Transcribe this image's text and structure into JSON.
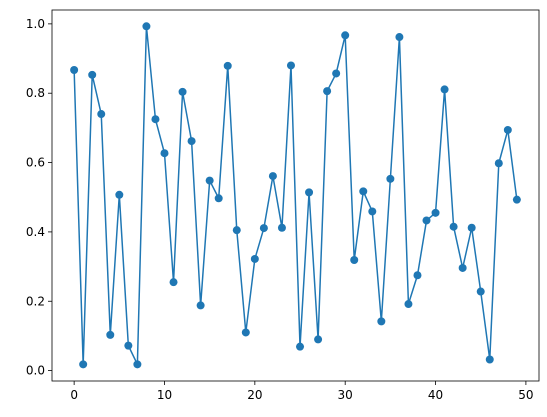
{
  "chart_data": {
    "type": "line",
    "title": "",
    "xlabel": "",
    "ylabel": "",
    "xlim": [
      -2.45,
      51.45
    ],
    "ylim": [
      -0.03,
      1.04
    ],
    "xticks": [
      0,
      10,
      20,
      30,
      40,
      50
    ],
    "yticks": [
      0.0,
      0.2,
      0.4,
      0.6,
      0.8,
      1.0
    ],
    "xtick_labels": [
      "0",
      "10",
      "20",
      "30",
      "40",
      "50"
    ],
    "ytick_labels": [
      "0.0",
      "0.2",
      "0.4",
      "0.6",
      "0.8",
      "1.0"
    ],
    "grid": false,
    "legend": false,
    "marker": "circle",
    "color": "#1f77b4",
    "x": [
      0,
      1,
      2,
      3,
      4,
      5,
      6,
      7,
      8,
      9,
      10,
      11,
      12,
      13,
      14,
      15,
      16,
      17,
      18,
      19,
      20,
      21,
      22,
      23,
      24,
      25,
      26,
      27,
      28,
      29,
      30,
      31,
      32,
      33,
      34,
      35,
      36,
      37,
      38,
      39,
      40,
      41,
      42,
      43,
      44,
      45,
      46,
      47,
      48,
      49
    ],
    "y": [
      0.867,
      0.018,
      0.853,
      0.74,
      0.103,
      0.507,
      0.072,
      0.018,
      0.993,
      0.725,
      0.627,
      0.255,
      0.804,
      0.662,
      0.188,
      0.548,
      0.497,
      0.879,
      0.405,
      0.11,
      0.322,
      0.411,
      0.561,
      0.412,
      0.88,
      0.069,
      0.514,
      0.09,
      0.806,
      0.857,
      0.967,
      0.319,
      0.517,
      0.459,
      0.142,
      0.553,
      0.962,
      0.192,
      0.275,
      0.433,
      0.455,
      0.811,
      0.415,
      0.296,
      0.412,
      0.228,
      0.032,
      0.598,
      0.694,
      0.493
    ]
  }
}
